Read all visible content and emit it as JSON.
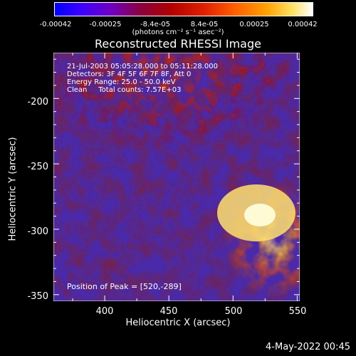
{
  "colorbar": {
    "tick_labels": [
      "-0.00042",
      "-0.00025",
      "-8.4e-05",
      "8.4e-05",
      "0.00025",
      "0.00042"
    ],
    "unit_label": "(photons cm⁻² s⁻¹ asec⁻²)"
  },
  "title": "Reconstructed RHESSI Image",
  "info": {
    "time": "21-Jul-2003 05:05:28.000 to 05:11:28.000",
    "detectors": "Detectors: 3F 4F 5F 6F 7F 8F, Att 0",
    "energy": "Energy Range: 25.0 - 50.0 keV",
    "clean": "Clean     Total counts: 7.57E+03"
  },
  "peak_label": "Position of Peak = [520,-289]",
  "axes": {
    "ylabel": "Heliocentric Y (arcsec)",
    "xlabel": "Heliocentric X (arcsec)",
    "yticks": [
      "-200",
      "-250",
      "-300",
      "-350"
    ],
    "xticks": [
      "400",
      "450",
      "500",
      "550"
    ],
    "xlim": [
      360,
      552
    ],
    "ylim": [
      -355,
      -165
    ]
  },
  "footer": "4-May-2022 00:45",
  "colors": {
    "background": "#000000",
    "text": "#ffffff",
    "map_low": "#5a2dbe",
    "map_high": "#ffffd0"
  },
  "chart_data": {
    "type": "heatmap",
    "title": "Reconstructed RHESSI Image",
    "xlabel": "Heliocentric X (arcsec)",
    "ylabel": "Heliocentric Y (arcsec)",
    "xlim": [
      360,
      552
    ],
    "ylim": [
      -355,
      -165
    ],
    "color_range": [
      -0.00042,
      0.00042
    ],
    "peak": [
      520,
      -289
    ]
  }
}
